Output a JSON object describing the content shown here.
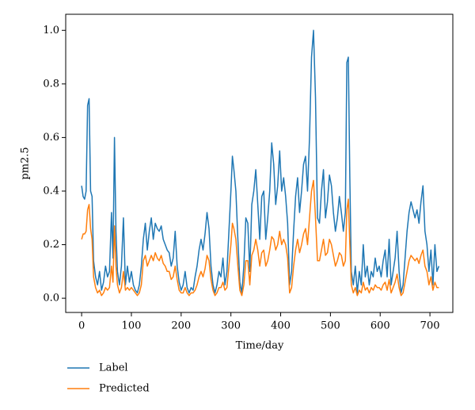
{
  "chart_data": {
    "type": "line",
    "x_label": "Time/day",
    "y_label": "pm2.5",
    "x": [
      0,
      3,
      6,
      9,
      12,
      15,
      18,
      21,
      24,
      28,
      32,
      36,
      40,
      44,
      48,
      52,
      56,
      60,
      63,
      66,
      69,
      72,
      76,
      80,
      84,
      88,
      92,
      96,
      100,
      104,
      108,
      112,
      116,
      120,
      124,
      128,
      132,
      136,
      140,
      144,
      148,
      152,
      156,
      160,
      164,
      168,
      172,
      176,
      180,
      184,
      188,
      192,
      196,
      200,
      204,
      208,
      212,
      216,
      220,
      224,
      228,
      232,
      236,
      240,
      244,
      248,
      252,
      256,
      260,
      264,
      268,
      272,
      276,
      280,
      284,
      288,
      292,
      296,
      300,
      303,
      306,
      310,
      314,
      318,
      322,
      326,
      330,
      334,
      338,
      342,
      346,
      350,
      354,
      358,
      362,
      366,
      370,
      374,
      378,
      382,
      386,
      390,
      394,
      398,
      402,
      406,
      410,
      414,
      418,
      422,
      426,
      430,
      434,
      438,
      442,
      446,
      450,
      454,
      458,
      462,
      466,
      470,
      474,
      478,
      482,
      486,
      490,
      494,
      498,
      502,
      506,
      510,
      514,
      518,
      522,
      526,
      530,
      533,
      536,
      539,
      542,
      546,
      550,
      554,
      558,
      562,
      566,
      570,
      574,
      578,
      582,
      586,
      590,
      594,
      598,
      602,
      606,
      610,
      614,
      618,
      622,
      626,
      630,
      634,
      638,
      642,
      646,
      650,
      654,
      658,
      662,
      666,
      670,
      674,
      678,
      682,
      686,
      690,
      694,
      698,
      702,
      706,
      710,
      714,
      718
    ],
    "series": [
      {
        "name": "Label",
        "color": "#1f77b4",
        "values": [
          0.42,
          0.38,
          0.37,
          0.4,
          0.72,
          0.745,
          0.4,
          0.38,
          0.14,
          0.08,
          0.05,
          0.1,
          0.03,
          0.06,
          0.12,
          0.08,
          0.1,
          0.32,
          0.15,
          0.6,
          0.25,
          0.1,
          0.05,
          0.12,
          0.3,
          0.05,
          0.12,
          0.06,
          0.1,
          0.05,
          0.03,
          0.02,
          0.05,
          0.12,
          0.22,
          0.28,
          0.18,
          0.25,
          0.3,
          0.22,
          0.28,
          0.26,
          0.25,
          0.27,
          0.22,
          0.2,
          0.18,
          0.17,
          0.12,
          0.15,
          0.25,
          0.12,
          0.06,
          0.03,
          0.05,
          0.1,
          0.04,
          0.02,
          0.04,
          0.03,
          0.08,
          0.12,
          0.18,
          0.22,
          0.18,
          0.24,
          0.32,
          0.26,
          0.12,
          0.05,
          0.02,
          0.05,
          0.1,
          0.08,
          0.15,
          0.05,
          0.1,
          0.25,
          0.4,
          0.53,
          0.48,
          0.4,
          0.22,
          0.06,
          0.02,
          0.12,
          0.3,
          0.28,
          0.1,
          0.35,
          0.4,
          0.48,
          0.35,
          0.22,
          0.38,
          0.4,
          0.22,
          0.3,
          0.4,
          0.58,
          0.5,
          0.35,
          0.42,
          0.55,
          0.4,
          0.45,
          0.38,
          0.28,
          0.05,
          0.1,
          0.25,
          0.38,
          0.45,
          0.32,
          0.4,
          0.5,
          0.53,
          0.4,
          0.6,
          0.9,
          1.0,
          0.75,
          0.3,
          0.28,
          0.4,
          0.48,
          0.3,
          0.36,
          0.46,
          0.42,
          0.32,
          0.25,
          0.3,
          0.38,
          0.32,
          0.25,
          0.32,
          0.88,
          0.9,
          0.45,
          0.1,
          0.05,
          0.12,
          0.02,
          0.1,
          0.05,
          0.2,
          0.08,
          0.12,
          0.05,
          0.1,
          0.08,
          0.15,
          0.1,
          0.12,
          0.08,
          0.14,
          0.18,
          0.08,
          0.22,
          0.05,
          0.1,
          0.15,
          0.25,
          0.1,
          0.02,
          0.05,
          0.15,
          0.25,
          0.32,
          0.36,
          0.33,
          0.3,
          0.33,
          0.28,
          0.36,
          0.42,
          0.25,
          0.2,
          0.1,
          0.18,
          0.05,
          0.2,
          0.1,
          0.12
        ]
      },
      {
        "name": "Predicted",
        "color": "#ff7f0e",
        "values": [
          0.22,
          0.24,
          0.24,
          0.25,
          0.33,
          0.35,
          0.26,
          0.22,
          0.08,
          0.04,
          0.02,
          0.03,
          0.01,
          0.02,
          0.04,
          0.03,
          0.04,
          0.12,
          0.06,
          0.27,
          0.12,
          0.05,
          0.02,
          0.04,
          0.1,
          0.03,
          0.04,
          0.03,
          0.04,
          0.03,
          0.02,
          0.01,
          0.02,
          0.05,
          0.14,
          0.16,
          0.12,
          0.14,
          0.16,
          0.14,
          0.17,
          0.15,
          0.14,
          0.16,
          0.13,
          0.12,
          0.1,
          0.1,
          0.07,
          0.08,
          0.12,
          0.07,
          0.03,
          0.02,
          0.02,
          0.04,
          0.02,
          0.01,
          0.02,
          0.02,
          0.03,
          0.05,
          0.08,
          0.1,
          0.08,
          0.11,
          0.16,
          0.14,
          0.07,
          0.03,
          0.01,
          0.02,
          0.04,
          0.04,
          0.06,
          0.03,
          0.04,
          0.12,
          0.2,
          0.28,
          0.26,
          0.22,
          0.12,
          0.03,
          0.01,
          0.05,
          0.14,
          0.14,
          0.05,
          0.16,
          0.18,
          0.22,
          0.18,
          0.12,
          0.17,
          0.18,
          0.12,
          0.14,
          0.18,
          0.23,
          0.22,
          0.18,
          0.2,
          0.25,
          0.2,
          0.22,
          0.2,
          0.15,
          0.02,
          0.04,
          0.12,
          0.18,
          0.22,
          0.17,
          0.2,
          0.24,
          0.26,
          0.2,
          0.3,
          0.4,
          0.44,
          0.3,
          0.14,
          0.14,
          0.18,
          0.22,
          0.16,
          0.17,
          0.22,
          0.2,
          0.16,
          0.12,
          0.14,
          0.17,
          0.16,
          0.12,
          0.14,
          0.33,
          0.37,
          0.2,
          0.05,
          0.02,
          0.04,
          0.01,
          0.03,
          0.02,
          0.06,
          0.03,
          0.04,
          0.02,
          0.04,
          0.03,
          0.05,
          0.04,
          0.04,
          0.03,
          0.05,
          0.06,
          0.03,
          0.07,
          0.02,
          0.04,
          0.06,
          0.09,
          0.04,
          0.01,
          0.02,
          0.06,
          0.1,
          0.14,
          0.16,
          0.15,
          0.14,
          0.15,
          0.13,
          0.16,
          0.18,
          0.12,
          0.1,
          0.05,
          0.08,
          0.03,
          0.06,
          0.04,
          0.04
        ]
      }
    ],
    "xlim": [
      -32,
      746
    ],
    "ylim": [
      -0.053,
      1.06
    ],
    "xticks": [
      0,
      100,
      200,
      300,
      400,
      500,
      600,
      700
    ],
    "yticks": [
      {
        "value": 0,
        "label": "0.0"
      },
      {
        "value": 0.2,
        "label": "0.2"
      },
      {
        "value": 0.4,
        "label": "0.4"
      },
      {
        "value": 0.6,
        "label": "0.6"
      },
      {
        "value": 0.8,
        "label": "0.8"
      },
      {
        "value": 1,
        "label": "1.0"
      }
    ],
    "legend": "bottom-left"
  }
}
